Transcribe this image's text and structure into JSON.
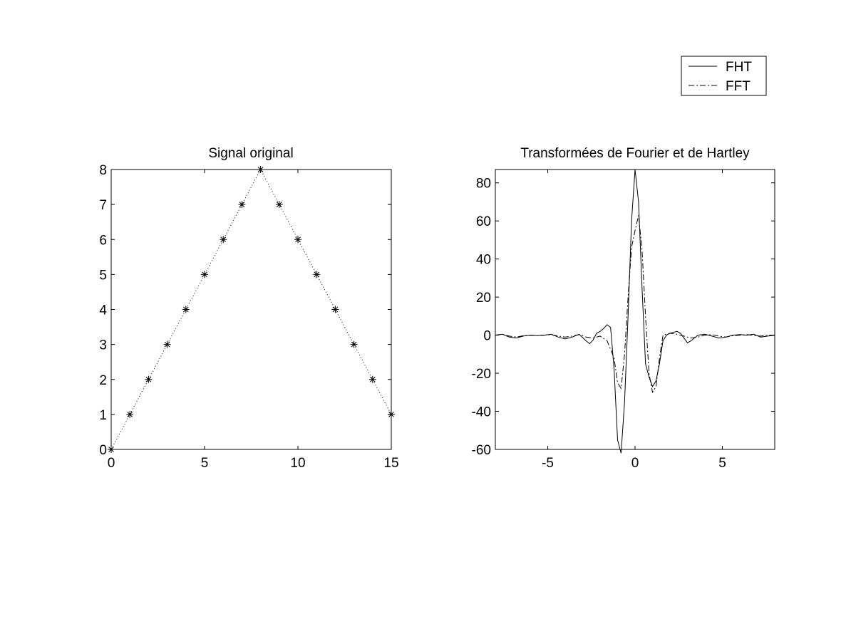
{
  "colors": {
    "background": "#ffffff",
    "axes": "#000000",
    "lines": "#000000"
  },
  "legend": {
    "placement": "top-right (figure)",
    "entries": [
      {
        "label": "FHT",
        "style": "solid"
      },
      {
        "label": "FFT",
        "style": "dash-dot"
      }
    ]
  },
  "chart_data": [
    {
      "type": "line",
      "title": "Signal original",
      "xlabel": "",
      "ylabel": "",
      "xlim": [
        0,
        15
      ],
      "ylim": [
        0,
        8
      ],
      "xticks": [
        0,
        5,
        10,
        15
      ],
      "yticks": [
        0,
        1,
        2,
        3,
        4,
        5,
        6,
        7,
        8
      ],
      "grid": false,
      "series": [
        {
          "line_style": "dotted",
          "marker": "asterisk",
          "x": [
            0,
            1,
            2,
            3,
            4,
            5,
            6,
            7,
            8,
            9,
            10,
            11,
            12,
            13,
            14,
            15
          ],
          "y": [
            0,
            1,
            2,
            3,
            4,
            5,
            6,
            7,
            8,
            7,
            6,
            5,
            4,
            3,
            2,
            1
          ]
        }
      ]
    },
    {
      "type": "line",
      "title": "Transformées de Fourier et de Hartley",
      "xlabel": "",
      "ylabel": "",
      "xlim": [
        -8,
        8
      ],
      "ylim": [
        -60,
        87
      ],
      "xticks": [
        -5,
        0,
        5
      ],
      "yticks": [
        -60,
        -40,
        -20,
        0,
        20,
        40,
        60,
        80
      ],
      "grid": false,
      "series": [
        {
          "name": "FHT",
          "line_style": "solid",
          "x": [
            -8,
            -7.6,
            -7.2,
            -6.8,
            -6.4,
            -6,
            -5.6,
            -5.2,
            -4.8,
            -4.4,
            -4,
            -3.6,
            -3.2,
            -2.8,
            -2.6,
            -2.4,
            -2.2,
            -2,
            -1.8,
            -1.6,
            -1.4,
            -1.2,
            -1,
            -0.8,
            -0.6,
            -0.4,
            -0.2,
            0,
            0.2,
            0.4,
            0.6,
            0.8,
            1,
            1.2,
            1.4,
            1.6,
            1.8,
            2,
            2.2,
            2.4,
            2.6,
            2.8,
            3,
            3.2,
            3.4,
            3.6,
            4,
            4.4,
            4.8,
            5.2,
            5.6,
            6,
            6.4,
            6.8,
            7.2,
            7.6,
            8
          ],
          "y": [
            0,
            0.5,
            -1,
            -1.5,
            -0.5,
            0,
            -0.2,
            0,
            0.5,
            -1,
            -2,
            -1,
            0.5,
            -3,
            -4.5,
            -2.5,
            1,
            2,
            3.5,
            5.5,
            4,
            -18,
            -55,
            -62,
            -35,
            10,
            60,
            87,
            70,
            25,
            -15,
            -22,
            -27,
            -24,
            -15,
            -3,
            0,
            1,
            1.5,
            2,
            1,
            -1.5,
            -4,
            -3,
            -1.5,
            0,
            0.5,
            -0.5,
            -1.5,
            -1,
            0,
            0.3,
            0,
            0.5,
            -1,
            -0.5,
            0
          ]
        },
        {
          "name": "FFT",
          "line_style": "dash-dot",
          "x": [
            -8,
            -7.6,
            -7.2,
            -6.8,
            -6.4,
            -6,
            -5.6,
            -5.2,
            -4.8,
            -4.4,
            -4,
            -3.6,
            -3.2,
            -2.8,
            -2.4,
            -2,
            -1.6,
            -1.2,
            -1,
            -0.8,
            -0.6,
            -0.4,
            -0.2,
            0,
            0.2,
            0.4,
            0.6,
            0.8,
            1,
            1.2,
            1.4,
            1.6,
            2,
            2.4,
            2.8,
            3.2,
            3.6,
            4,
            4.4,
            4.8,
            5.2,
            5.6,
            6,
            6.4,
            6.8,
            7.2,
            7.6,
            8
          ],
          "y": [
            0,
            0.5,
            -0.5,
            -1,
            -0.3,
            0,
            -0.2,
            0,
            0.3,
            -0.5,
            -1,
            -0.5,
            0.3,
            -1,
            -1.5,
            -0.5,
            -3,
            -12,
            -25,
            -28,
            -10,
            20,
            46,
            55,
            63,
            45,
            10,
            -20,
            -30,
            -27,
            -12,
            0,
            1,
            0.5,
            -0.5,
            -1.5,
            -1,
            0,
            0.3,
            -0.5,
            -1,
            -0.3,
            0,
            0.3,
            -0.2,
            -0.5,
            0,
            0
          ]
        }
      ]
    }
  ]
}
